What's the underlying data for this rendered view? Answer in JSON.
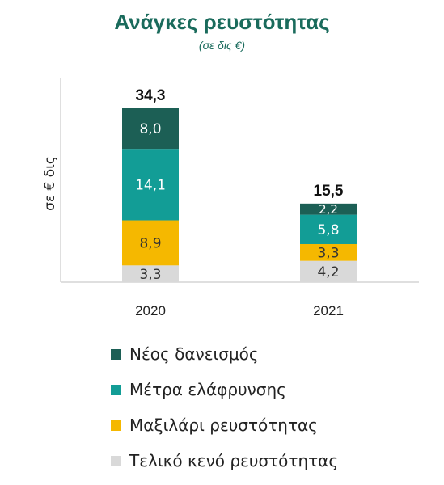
{
  "title": "Ανάγκες ρευστότητας",
  "subtitle": "(σε δις €)",
  "colors": {
    "title": "#1a6b5c",
    "Νέος δανεισμός": "#1c5f55",
    "Μέτρα ελάφρυνσης": "#129d96",
    "Μαξιλάρι ρευστότητας": "#f5b800",
    "Τελικό κενό ρευστότητας": "#d9d9d9"
  },
  "chart_data": {
    "type": "bar",
    "stacked": true,
    "title": "Ανάγκες ρευστότητας",
    "subtitle": "(σε δις €)",
    "xlabel": "",
    "ylabel": "σε € δις",
    "categories": [
      "2020",
      "2021"
    ],
    "totals": [
      "34,3",
      "15,5"
    ],
    "series": [
      {
        "name": "Τελικό κενό ρευστότητας",
        "values": [
          3.3,
          4.2
        ],
        "labels": [
          "3,3",
          "4,2"
        ]
      },
      {
        "name": "Μαξιλάρι ρευστότητας",
        "values": [
          8.9,
          3.3
        ],
        "labels": [
          "8,9",
          "3,3"
        ]
      },
      {
        "name": "Μέτρα ελάφρυνσης",
        "values": [
          14.1,
          5.8
        ],
        "labels": [
          "14,1",
          "5,8"
        ]
      },
      {
        "name": "Νέος δανεισμός",
        "values": [
          8.0,
          2.2
        ],
        "labels": [
          "8,0",
          "2,2"
        ]
      }
    ],
    "ylim": [
      0,
      34.3
    ],
    "grid": false,
    "legend_position": "bottom"
  },
  "legend": [
    {
      "label": "Νέος δανεισμός"
    },
    {
      "label": "Μέτρα ελάφρυνσης"
    },
    {
      "label": "Μαξιλάρι ρευστότητας"
    },
    {
      "label": "Τελικό κενό ρευστότητας"
    }
  ]
}
